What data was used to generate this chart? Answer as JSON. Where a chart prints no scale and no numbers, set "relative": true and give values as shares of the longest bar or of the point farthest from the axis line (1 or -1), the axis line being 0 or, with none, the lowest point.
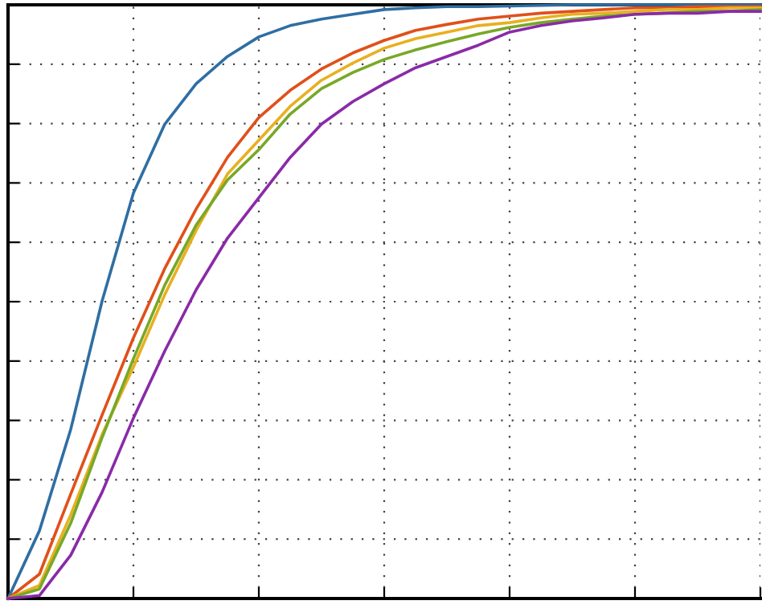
{
  "chart_data": {
    "type": "line",
    "relative": true,
    "grid": true,
    "marker": "none",
    "line_style": "solid",
    "categories": [
      null,
      null,
      null,
      null,
      null,
      null,
      null,
      null,
      null,
      null,
      null,
      null,
      null,
      null,
      null,
      null,
      null,
      null,
      null,
      null,
      null,
      null,
      null,
      null,
      null
    ],
    "series": [
      {
        "color": "#2f6ea3",
        "values": [
          0,
          0.114,
          0.285,
          0.501,
          0.683,
          0.799,
          0.867,
          0.913,
          0.946,
          0.965,
          0.976,
          0.984,
          0.992,
          0.995,
          0.997,
          0.997,
          0.998,
          0.999,
          1,
          1,
          1,
          1,
          1,
          1,
          1
        ]
      },
      {
        "color": "#e0501a",
        "values": [
          0,
          0.041,
          0.176,
          0.309,
          0.439,
          0.556,
          0.656,
          0.743,
          0.81,
          0.856,
          0.892,
          0.919,
          0.94,
          0.957,
          0.967,
          0.976,
          0.981,
          0.986,
          0.989,
          0.992,
          0.995,
          0.995,
          0.997,
          0.997,
          0.997
        ]
      },
      {
        "color": "#e8b020",
        "values": [
          0,
          0.022,
          0.141,
          0.276,
          0.39,
          0.512,
          0.62,
          0.715,
          0.772,
          0.829,
          0.873,
          0.902,
          0.927,
          0.943,
          0.954,
          0.965,
          0.97,
          0.978,
          0.984,
          0.986,
          0.989,
          0.992,
          0.992,
          0.995,
          0.995
        ]
      },
      {
        "color": "#78a828",
        "values": [
          0,
          0.016,
          0.127,
          0.271,
          0.404,
          0.528,
          0.629,
          0.705,
          0.756,
          0.816,
          0.859,
          0.886,
          0.908,
          0.924,
          0.938,
          0.951,
          0.962,
          0.97,
          0.976,
          0.981,
          0.984,
          0.986,
          0.989,
          0.989,
          0.992
        ]
      },
      {
        "color": "#8a2aa8",
        "values": [
          0,
          0.005,
          0.073,
          0.179,
          0.304,
          0.417,
          0.52,
          0.607,
          0.675,
          0.743,
          0.799,
          0.837,
          0.867,
          0.894,
          0.913,
          0.932,
          0.954,
          0.965,
          0.973,
          0.978,
          0.984,
          0.986,
          0.986,
          0.989,
          0.989
        ]
      }
    ]
  }
}
